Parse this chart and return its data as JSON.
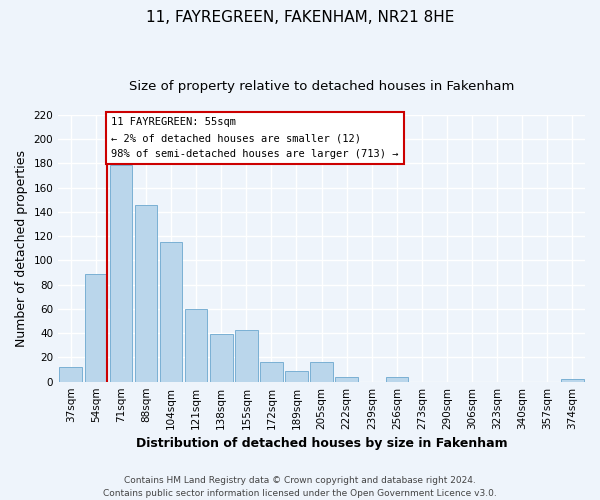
{
  "title": "11, FAYREGREEN, FAKENHAM, NR21 8HE",
  "subtitle": "Size of property relative to detached houses in Fakenham",
  "xlabel": "Distribution of detached houses by size in Fakenham",
  "ylabel": "Number of detached properties",
  "bar_labels": [
    "37sqm",
    "54sqm",
    "71sqm",
    "88sqm",
    "104sqm",
    "121sqm",
    "138sqm",
    "155sqm",
    "172sqm",
    "189sqm",
    "205sqm",
    "222sqm",
    "239sqm",
    "256sqm",
    "273sqm",
    "290sqm",
    "306sqm",
    "323sqm",
    "340sqm",
    "357sqm",
    "374sqm"
  ],
  "bar_values": [
    12,
    89,
    179,
    146,
    115,
    60,
    39,
    43,
    16,
    9,
    16,
    4,
    0,
    4,
    0,
    0,
    0,
    0,
    0,
    0,
    2
  ],
  "bar_color": "#bad6eb",
  "bar_edge_color": "#7ab0d4",
  "marker_line_color": "#cc0000",
  "annotation_line1": "11 FAYREGREEN: 55sqm",
  "annotation_line2": "← 2% of detached houses are smaller (12)",
  "annotation_line3": "98% of semi-detached houses are larger (713) →",
  "annotation_box_color": "#ffffff",
  "annotation_box_edge_color": "#cc0000",
  "ylim": [
    0,
    220
  ],
  "yticks": [
    0,
    20,
    40,
    60,
    80,
    100,
    120,
    140,
    160,
    180,
    200,
    220
  ],
  "footer_line1": "Contains HM Land Registry data © Crown copyright and database right 2024.",
  "footer_line2": "Contains public sector information licensed under the Open Government Licence v3.0.",
  "bg_color": "#eef4fb",
  "grid_color": "#ffffff",
  "title_fontsize": 11,
  "subtitle_fontsize": 9.5,
  "axis_label_fontsize": 9,
  "tick_fontsize": 7.5,
  "footer_fontsize": 6.5
}
